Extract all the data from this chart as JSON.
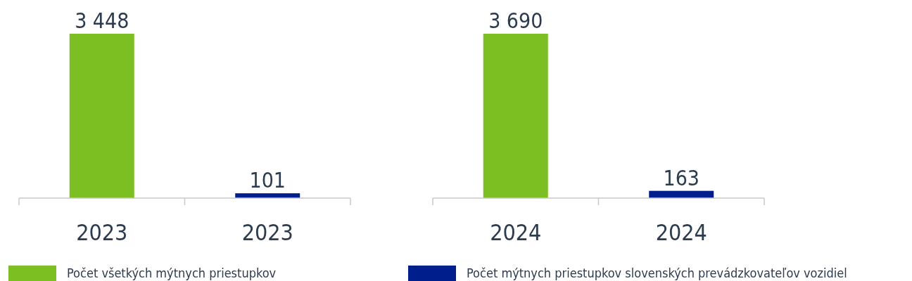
{
  "chart_data": [
    {
      "type": "bar",
      "categories": [
        "2023",
        "2023"
      ],
      "series": [
        {
          "name": "Počet všetkých mýtnych priestupkov",
          "color": "#7bbf23",
          "values": [
            3448,
            null
          ]
        },
        {
          "name": "Počet mýtnych priestupkov slovenských prevádzkovateľov vozidiel",
          "color": "#001f8c",
          "values": [
            null,
            101
          ]
        }
      ],
      "data_labels": true,
      "legend": "bottom"
    },
    {
      "type": "bar",
      "categories": [
        "2024",
        "2024"
      ],
      "series": [
        {
          "color": "#7bbf23",
          "values": [
            3690,
            null
          ]
        },
        {
          "color": "#001f8c",
          "values": [
            null,
            163
          ]
        }
      ],
      "data_labels": true
    }
  ]
}
